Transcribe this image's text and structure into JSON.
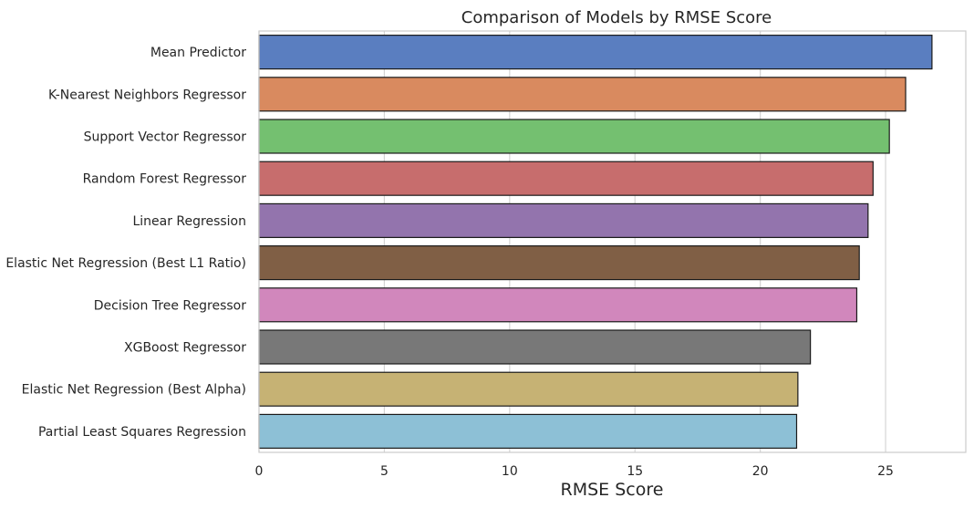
{
  "chart_data": {
    "type": "bar",
    "orientation": "horizontal",
    "title": "Comparison of Models by RMSE Score",
    "xlabel": "RMSE Score",
    "ylabel": "",
    "xlim": [
      0,
      28.2
    ],
    "xticks": [
      0,
      5,
      10,
      15,
      20,
      25
    ],
    "grid": "vertical",
    "legend": "none",
    "categories": [
      "Mean Predictor",
      "K-Nearest Neighbors Regressor",
      "Support Vector Regressor",
      "Random Forest Regressor",
      "Linear Regression",
      "Elastic Net Regression (Best L1 Ratio)",
      "Decision Tree Regressor",
      "XGBoost Regressor",
      "Elastic Net Regression (Best Alpha)",
      "Partial Least Squares Regression"
    ],
    "values": [
      26.85,
      25.8,
      25.15,
      24.5,
      24.3,
      23.95,
      23.85,
      22.0,
      21.5,
      21.45
    ],
    "colors": [
      "#5a7ec0",
      "#d98a5f",
      "#74c070",
      "#c76d6d",
      "#9374ad",
      "#805f45",
      "#d187bc",
      "#787878",
      "#c6b274",
      "#8dc0d6"
    ]
  }
}
